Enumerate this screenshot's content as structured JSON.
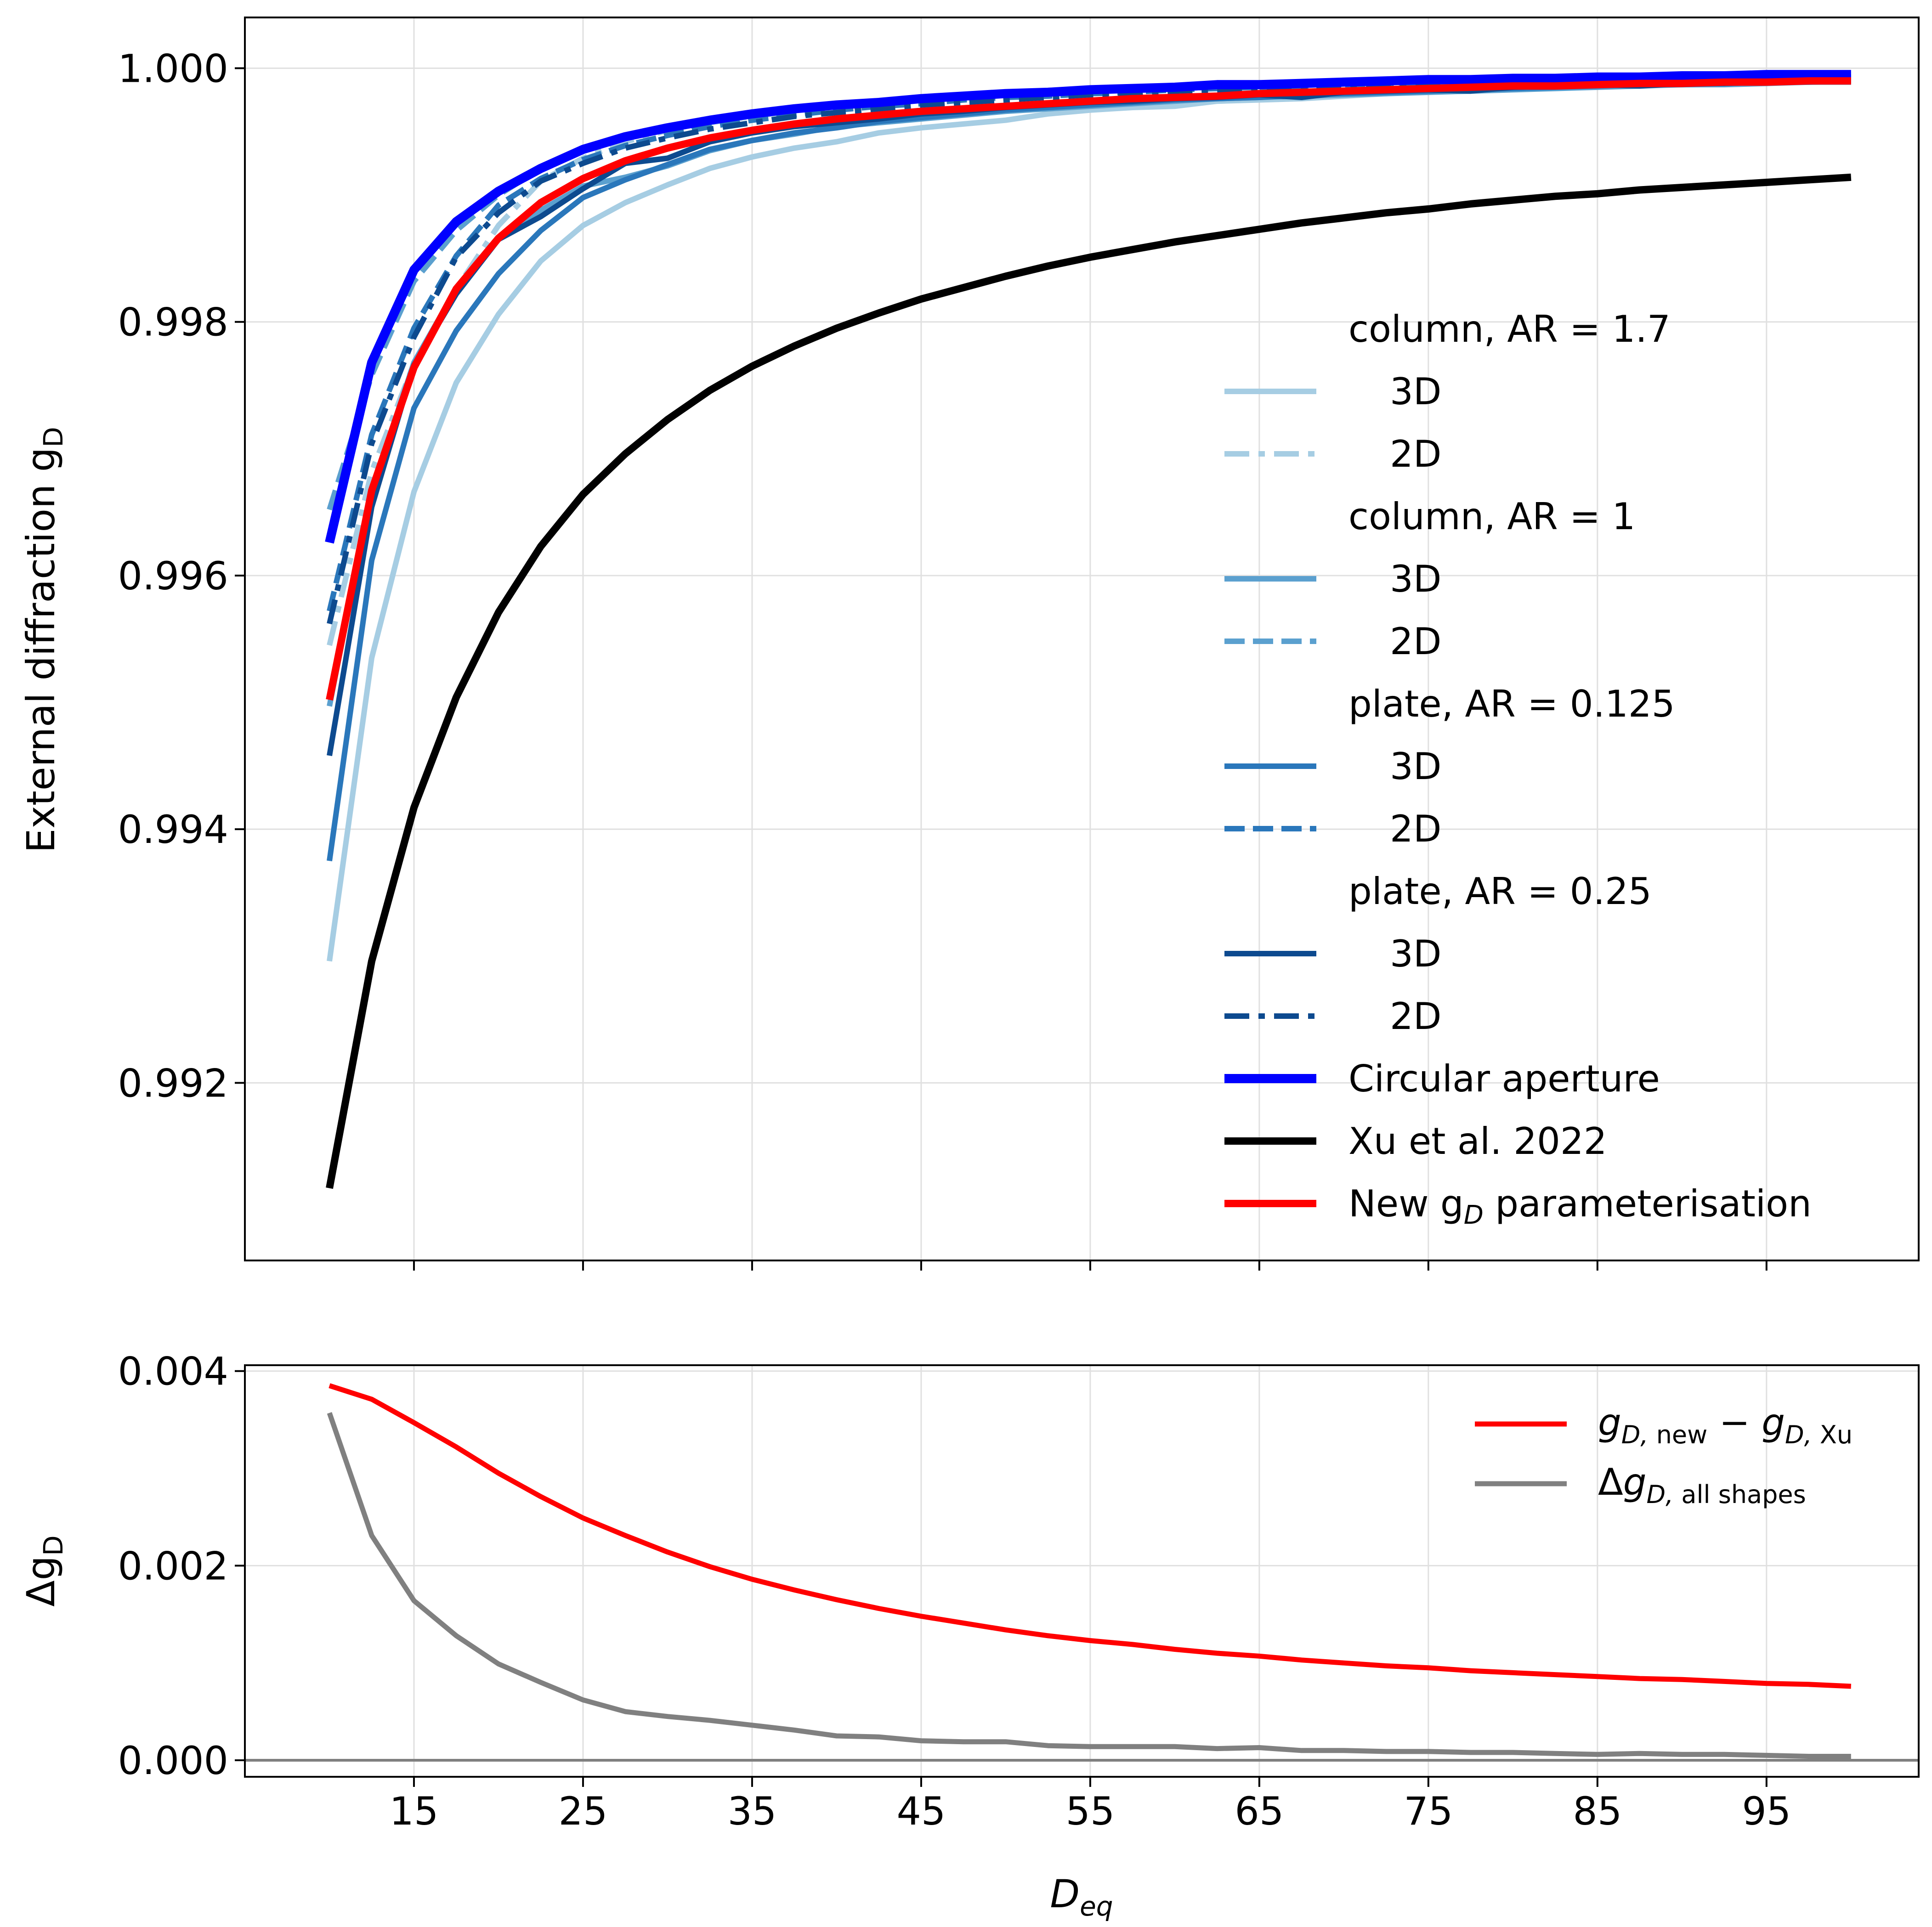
{
  "chart_data": [
    {
      "type": "line",
      "ylabel": "External diffraction g",
      "ylabel_sub": "D",
      "xlim": [
        5,
        104
      ],
      "ylim": [
        0.9906,
        1.0004
      ],
      "xticks": [
        15,
        25,
        35,
        45,
        55,
        65,
        75,
        85,
        95
      ],
      "yticks": [
        0.992,
        0.994,
        0.996,
        0.998,
        1.0
      ],
      "ytick_labels": [
        "0.992",
        "0.994",
        "0.996",
        "0.998",
        "1.000"
      ],
      "grid": true,
      "legend_position": "right",
      "legend_groups": [
        {
          "title": "column, AR = 1.7",
          "entries": [
            {
              "label": "3D",
              "series": 0
            },
            {
              "label": "2D",
              "series": 1
            }
          ]
        },
        {
          "title": "column, AR = 1",
          "entries": [
            {
              "label": "3D",
              "series": 2
            },
            {
              "label": "2D",
              "series": 3
            }
          ]
        },
        {
          "title": "plate, AR = 0.125",
          "entries": [
            {
              "label": "3D",
              "series": 4
            },
            {
              "label": "2D",
              "series": 5
            }
          ]
        },
        {
          "title": "plate, AR = 0.25",
          "entries": [
            {
              "label": "3D",
              "series": 6
            },
            {
              "label": "2D",
              "series": 7
            }
          ]
        }
      ],
      "legend_extra": [
        {
          "label": "Circular aperture",
          "series": 8
        },
        {
          "label": "Xu et al. 2022",
          "series": 9
        },
        {
          "label_main": "New g",
          "label_sub": "D",
          "label_rest": " parameterisation",
          "series": 10
        }
      ],
      "x": [
        10,
        12.5,
        15,
        17.5,
        20,
        22.5,
        25,
        27.5,
        30,
        32.5,
        35,
        37.5,
        40,
        42.5,
        45,
        47.5,
        50,
        52.5,
        55,
        57.5,
        60,
        62.5,
        65,
        67.5,
        70,
        72.5,
        75,
        77.5,
        80,
        82.5,
        85,
        87.5,
        90,
        92.5,
        95,
        97.5,
        100
      ],
      "series": [
        {
          "name": "3D",
          "group": "column, AR = 1.7",
          "color": "#a6cde3",
          "dash": "solid",
          "width": 12,
          "values": [
            0.99296,
            0.99535,
            0.99666,
            0.99752,
            0.99806,
            0.99848,
            0.99876,
            0.99894,
            0.99908,
            0.99921,
            0.9993,
            0.99937,
            0.99942,
            0.99949,
            0.99953,
            0.99956,
            0.99959,
            0.99964,
            0.99967,
            0.99969,
            0.9997,
            0.99974,
            0.99975,
            0.99976,
            0.99978,
            0.9998,
            0.99982,
            0.99983,
            0.99984,
            0.99985,
            0.99986,
            0.99987,
            0.99988,
            0.99989,
            0.9999,
            0.9999,
            0.99991
          ]
        },
        {
          "name": "2D",
          "group": "column, AR = 1.7",
          "color": "#a6cde3",
          "dash": "dashdot",
          "width": 12,
          "values": [
            0.99545,
            0.99682,
            0.99767,
            0.99826,
            0.99876,
            0.99911,
            0.99929,
            0.99942,
            0.99951,
            0.99957,
            0.99962,
            0.99966,
            0.99969,
            0.99972,
            0.99975,
            0.99977,
            0.99979,
            0.99981,
            0.99982,
            0.99984,
            0.99985,
            0.99986,
            0.99987,
            0.99988,
            0.99989,
            0.9999,
            0.9999,
            0.99991,
            0.99992,
            0.99992,
            0.99993,
            0.99993,
            0.99994,
            0.99994,
            0.99994,
            0.99995,
            0.99995
          ]
        },
        {
          "name": "3D",
          "group": "column, AR = 1",
          "color": "#5ba0cf",
          "dash": "solid",
          "width": 12,
          "values": [
            0.99497,
            0.99667,
            0.99768,
            0.99826,
            0.99866,
            0.99888,
            0.99907,
            0.99914,
            0.99923,
            0.99935,
            0.99943,
            0.99948,
            0.99954,
            0.99957,
            0.9996,
            0.99963,
            0.99966,
            0.99968,
            0.9997,
            0.99972,
            0.99974,
            0.99976,
            0.99977,
            0.99978,
            0.99979,
            0.9998,
            0.99981,
            0.99982,
            0.99983,
            0.99984,
            0.99985,
            0.99986,
            0.99987,
            0.99987,
            0.99988,
            0.99989,
            0.99989
          ]
        },
        {
          "name": "2D",
          "group": "column, AR = 1",
          "color": "#5ba0cf",
          "dash": "dashed",
          "width": 12,
          "values": [
            0.99652,
            0.99758,
            0.99832,
            0.99872,
            0.999,
            0.99921,
            0.99935,
            0.99945,
            0.99953,
            0.99959,
            0.99963,
            0.99967,
            0.9997,
            0.99972,
            0.99975,
            0.99977,
            0.99979,
            0.9998,
            0.99982,
            0.99983,
            0.99984,
            0.99985,
            0.99986,
            0.99987,
            0.99988,
            0.99988,
            0.99989,
            0.9999,
            0.9999,
            0.99991,
            0.99992,
            0.99992,
            0.99993,
            0.99993,
            0.99993,
            0.99994,
            0.99994
          ]
        },
        {
          "name": "3D",
          "group": "plate, AR = 0.125",
          "color": "#2a77bb",
          "dash": "solid",
          "width": 12,
          "values": [
            0.99375,
            0.99612,
            0.99732,
            0.99793,
            0.99838,
            0.99872,
            0.99898,
            0.99912,
            0.99924,
            0.99936,
            0.99943,
            0.99949,
            0.99953,
            0.99958,
            0.99961,
            0.99964,
            0.99967,
            0.99969,
            0.99971,
            0.99973,
            0.99975,
            0.99976,
            0.99977,
            0.99979,
            0.9998,
            0.99981,
            0.99982,
            0.99983,
            0.99984,
            0.99985,
            0.99986,
            0.99987,
            0.99987,
            0.99988,
            0.99989,
            0.99989,
            0.9999
          ]
        },
        {
          "name": "2D",
          "group": "plate, AR = 0.125",
          "color": "#2a77bb",
          "dash": "dashed",
          "width": 12,
          "values": [
            0.99572,
            0.99711,
            0.99795,
            0.99852,
            0.99892,
            0.99913,
            0.99928,
            0.99939,
            0.99947,
            0.99954,
            0.99959,
            0.99963,
            0.99967,
            0.9997,
            0.99972,
            0.99975,
            0.99977,
            0.99978,
            0.9998,
            0.99981,
            0.99983,
            0.99984,
            0.99985,
            0.99986,
            0.99987,
            0.99988,
            0.99988,
            0.99989,
            0.9999,
            0.9999,
            0.99991,
            0.99992,
            0.99992,
            0.99993,
            0.99993,
            0.99993,
            0.99994
          ]
        },
        {
          "name": "3D",
          "group": "plate, AR = 0.25",
          "color": "#0d4a8f",
          "dash": "solid",
          "width": 12,
          "values": [
            0.99458,
            0.99654,
            0.99766,
            0.99822,
            0.99865,
            0.99883,
            0.99905,
            0.99925,
            0.99929,
            0.99942,
            0.99949,
            0.99954,
            0.99957,
            0.9996,
            0.99964,
            0.99966,
            0.99969,
            0.99971,
            0.99973,
            0.99974,
            0.99976,
            0.99977,
            0.99979,
            0.99977,
            0.99981,
            0.99982,
            0.99983,
            0.99982,
            0.99985,
            0.99986,
            0.99987,
            0.99986,
            0.99988,
            0.99988,
            0.99989,
            0.9999,
            0.9999
          ]
        },
        {
          "name": "2D",
          "group": "plate, AR = 0.25",
          "color": "#0d4a8f",
          "dash": "dashdot",
          "width": 12,
          "values": [
            0.99562,
            0.99704,
            0.99788,
            0.99851,
            0.99886,
            0.99911,
            0.99925,
            0.99937,
            0.99945,
            0.99952,
            0.99957,
            0.99962,
            0.99965,
            0.99968,
            0.99971,
            0.99973,
            0.99975,
            0.99977,
            0.99979,
            0.9998,
            0.99982,
            0.99983,
            0.99984,
            0.99985,
            0.99986,
            0.99987,
            0.99988,
            0.99988,
            0.99989,
            0.9999,
            0.9999,
            0.99991,
            0.99992,
            0.99992,
            0.99993,
            0.99993,
            0.99993
          ]
        },
        {
          "name": "Circular aperture",
          "color": "#0000ff",
          "dash": "solid",
          "width": 20,
          "values": [
            0.99626,
            0.99768,
            0.99841,
            0.99879,
            0.99903,
            0.99921,
            0.99936,
            0.99946,
            0.99953,
            0.99959,
            0.99964,
            0.99968,
            0.99971,
            0.99973,
            0.99976,
            0.99978,
            0.9998,
            0.99981,
            0.99983,
            0.99984,
            0.99985,
            0.99987,
            0.99987,
            0.99988,
            0.99989,
            0.9999,
            0.99991,
            0.99991,
            0.99992,
            0.99992,
            0.99993,
            0.99993,
            0.99994,
            0.99994,
            0.99995,
            0.99995,
            0.99995
          ]
        },
        {
          "name": "Xu et al. 2022",
          "color": "#000000",
          "dash": "solid",
          "width": 16,
          "values": [
            0.99117,
            0.99296,
            0.99417,
            0.99504,
            0.99571,
            0.99623,
            0.99664,
            0.99696,
            0.99723,
            0.99746,
            0.99765,
            0.99781,
            0.99795,
            0.99807,
            0.99818,
            0.99827,
            0.99836,
            0.99844,
            0.99851,
            0.99857,
            0.99863,
            0.99868,
            0.99873,
            0.99878,
            0.99882,
            0.99886,
            0.99889,
            0.99893,
            0.99896,
            0.99899,
            0.99901,
            0.99904,
            0.99906,
            0.99908,
            0.9991,
            0.99912,
            0.99914
          ]
        },
        {
          "name": "New gD parameterisation",
          "color": "#ff0000",
          "dash": "solid",
          "width": 16,
          "values": [
            0.99502,
            0.99667,
            0.99764,
            0.99826,
            0.99866,
            0.99894,
            0.99913,
            0.99927,
            0.99937,
            0.99945,
            0.99951,
            0.99956,
            0.9996,
            0.99963,
            0.99966,
            0.99968,
            0.9997,
            0.99972,
            0.99974,
            0.99976,
            0.99977,
            0.99978,
            0.9998,
            0.99981,
            0.99982,
            0.99983,
            0.99984,
            0.99985,
            0.99986,
            0.99986,
            0.99987,
            0.99988,
            0.99988,
            0.99989,
            0.99989,
            0.9999,
            0.9999
          ]
        }
      ]
    },
    {
      "type": "line",
      "xlabel": "D",
      "xlabel_sub": "eq",
      "ylabel": "Δg",
      "ylabel_sub": "D",
      "xlim": [
        5,
        104
      ],
      "ylim": [
        -0.00017,
        0.00406
      ],
      "xticks": [
        15,
        25,
        35,
        45,
        55,
        65,
        75,
        85,
        95
      ],
      "xtick_labels": [
        "15",
        "25",
        "35",
        "45",
        "55",
        "65",
        "75",
        "85",
        "95"
      ],
      "yticks": [
        0.0,
        0.002,
        0.004
      ],
      "ytick_labels": [
        "0.000",
        "0.002",
        "0.004"
      ],
      "grid": true,
      "hline": {
        "y": 0,
        "color": "#808080"
      },
      "legend_position": "top-right",
      "x": [
        10,
        12.5,
        15,
        17.5,
        20,
        22.5,
        25,
        27.5,
        30,
        32.5,
        35,
        37.5,
        40,
        42.5,
        45,
        47.5,
        50,
        52.5,
        55,
        57.5,
        60,
        62.5,
        65,
        67.5,
        70,
        72.5,
        75,
        77.5,
        80,
        82.5,
        85,
        87.5,
        90,
        92.5,
        95,
        97.5,
        100
      ],
      "series": [
        {
          "name": "g_D,new − g_D,Xu",
          "color": "#ff0000",
          "width": 11,
          "legend_parts": [
            {
              "t": "g",
              "i": true
            },
            {
              "t": "D,",
              "s": true,
              "i": true
            },
            {
              "t": " new",
              "s": true
            },
            {
              "t": " − "
            },
            {
              "t": "g",
              "i": true
            },
            {
              "t": "D,",
              "s": true,
              "i": true
            },
            {
              "t": " Xu",
              "s": true
            }
          ],
          "values": [
            0.00385,
            0.00371,
            0.00347,
            0.00322,
            0.00295,
            0.00271,
            0.00249,
            0.00231,
            0.00214,
            0.00199,
            0.00186,
            0.00175,
            0.00165,
            0.00156,
            0.00148,
            0.00141,
            0.00134,
            0.00128,
            0.00123,
            0.00119,
            0.00114,
            0.0011,
            0.00107,
            0.00103,
            0.001,
            0.00097,
            0.00095,
            0.00092,
            0.0009,
            0.00088,
            0.00086,
            0.00084,
            0.00083,
            0.00081,
            0.00079,
            0.00078,
            0.00076
          ]
        },
        {
          "name": "Δg_D,all shapes",
          "color": "#808080",
          "width": 11,
          "legend_parts": [
            {
              "t": "Δ"
            },
            {
              "t": "g",
              "i": true
            },
            {
              "t": "D,",
              "s": true,
              "i": true
            },
            {
              "t": " all shapes",
              "s": true
            }
          ],
          "values": [
            0.00357,
            0.00231,
            0.00164,
            0.00128,
            0.00099,
            0.0008,
            0.00062,
            0.0005,
            0.00045,
            0.00041,
            0.00036,
            0.00031,
            0.00025,
            0.00024,
            0.0002,
            0.00019,
            0.00019,
            0.00015,
            0.00014,
            0.00014,
            0.00014,
            0.00012,
            0.00013,
            0.0001,
            0.0001,
            9e-05,
            9e-05,
            8e-05,
            8e-05,
            7e-05,
            6e-05,
            7e-05,
            6e-05,
            6e-05,
            5e-05,
            4e-05,
            4e-05
          ]
        }
      ]
    }
  ]
}
